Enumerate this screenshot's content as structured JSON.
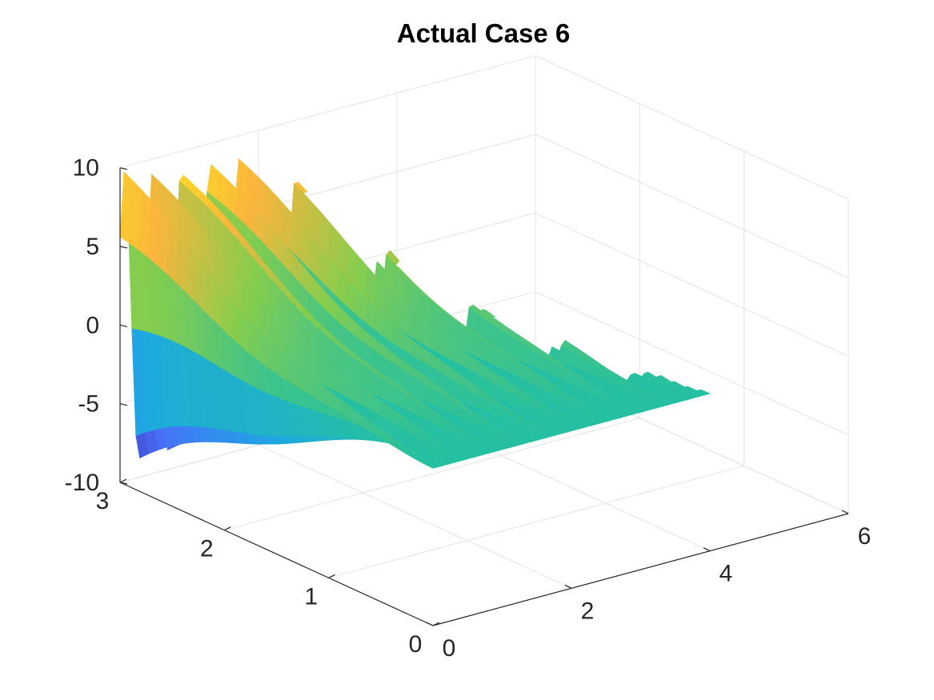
{
  "chart_data": {
    "type": "surface",
    "title": "Actual Case 6",
    "xlabel": "",
    "ylabel": "",
    "zlabel": "",
    "xlim": [
      0,
      6
    ],
    "ylim": [
      0,
      3
    ],
    "zlim": [
      -10,
      10
    ],
    "x_ticks": [
      0,
      2,
      4,
      6
    ],
    "y_ticks": [
      0,
      1,
      2,
      3
    ],
    "z_ticks": [
      -10,
      -5,
      0,
      5,
      10
    ],
    "x_tick_labels": [
      "0",
      "2",
      "4",
      "6"
    ],
    "y_tick_labels": [
      "0",
      "1",
      "2",
      "3"
    ],
    "z_tick_labels": [
      "-10",
      "-5",
      "0",
      "5",
      "10"
    ],
    "grid": true,
    "colormap": "parula",
    "colormap_stops": [
      "#3e26a8",
      "#4772fa",
      "#1caadf",
      "#25c0a1",
      "#86cd4d",
      "#fbb53c",
      "#f9fb15"
    ],
    "data_extent": {
      "x": [
        0,
        4
      ],
      "y": [
        0,
        3
      ]
    },
    "surface_model": {
      "description_formula": "z = A(y) * sin(k * x) * exp(-d * x) clipped past x_end(y)",
      "peak_amplitude": 9.5,
      "approx_peaks_along_x": 8,
      "peaks_at_y3": [
        {
          "x": 0.15,
          "z": 9.0
        },
        {
          "x": 0.55,
          "z": 9.6
        },
        {
          "x": 0.95,
          "z": 9.8
        },
        {
          "x": 1.35,
          "z": 9.7
        },
        {
          "x": 1.75,
          "z": 9.6
        },
        {
          "x": 2.15,
          "z": 9.8
        },
        {
          "x": 2.55,
          "z": 9.9
        },
        {
          "x": 2.95,
          "z": 10.5
        }
      ],
      "troughs_at_y3": [
        {
          "x": 0.35,
          "z": -9.2
        },
        {
          "x": 0.75,
          "z": -8.6
        },
        {
          "x": 1.15,
          "z": -7.0
        },
        {
          "x": 1.55,
          "z": -6.0
        },
        {
          "x": 1.95,
          "z": -5.0
        },
        {
          "x": 2.35,
          "z": -4.2
        },
        {
          "x": 2.75,
          "z": -3.2
        },
        {
          "x": 3.15,
          "z": -2.0
        }
      ]
    }
  }
}
